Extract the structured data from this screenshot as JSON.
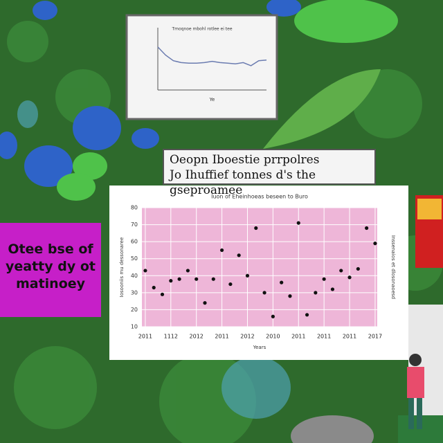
{
  "chart_data": [
    {
      "type": "scatter",
      "title": "Iuon of Eheinhoeas beseen to Buro",
      "xlabel": "Years",
      "ylabel": "Iosooniis mu dessonaree",
      "y2label": "Inssenaios et dlosonaoesd",
      "color": "#111111",
      "grid": true,
      "x": [
        0,
        1,
        2,
        3,
        4,
        5,
        6,
        7,
        8,
        9,
        10,
        11,
        12,
        13,
        14,
        15,
        16,
        17,
        18,
        19,
        20,
        21,
        22,
        23,
        24,
        25,
        26,
        27
      ],
      "values": [
        43,
        33,
        29,
        37,
        38,
        43,
        38,
        24,
        38,
        55,
        35,
        52,
        40,
        68,
        30,
        16,
        36,
        28,
        71,
        17,
        30,
        38,
        32,
        43,
        39,
        44,
        68,
        59
      ],
      "xlim": [
        -0.4,
        27.25
      ],
      "xticks": [
        {
          "value": 0,
          "label": "2011"
        },
        {
          "value": 3,
          "label": "1112"
        },
        {
          "value": 6,
          "label": "2012"
        },
        {
          "value": 9,
          "label": "2011"
        },
        {
          "value": 12,
          "label": "2012"
        },
        {
          "value": 15,
          "label": "2010"
        },
        {
          "value": 18,
          "label": "2011"
        },
        {
          "value": 21,
          "label": "2011"
        },
        {
          "value": 24,
          "label": "2011"
        },
        {
          "value": 27,
          "label": "2017"
        }
      ],
      "ylim": [
        10,
        80
      ],
      "yticks": [
        10,
        20,
        30,
        40,
        50,
        60,
        70,
        80
      ]
    },
    {
      "type": "line",
      "title": "Tmoqnoe mbohl rotlee ei tee",
      "xlabel": "Ye",
      "color": "#6a7bb0",
      "x": [
        0,
        1,
        2,
        3,
        4,
        5,
        6,
        7,
        8,
        9,
        10,
        11,
        12,
        13,
        14
      ],
      "values": [
        69,
        56,
        47,
        44,
        43,
        43,
        44,
        46,
        44,
        43,
        42,
        44,
        39,
        47,
        48
      ],
      "xlim": [
        0,
        14
      ],
      "ylim": [
        0,
        100
      ]
    }
  ],
  "banner": {
    "lines": [
      "Oeopn Iboestie prrpolres",
      "Jo Ihuffief tonnes d's the gseproamee"
    ]
  },
  "sign": {
    "lines": [
      "Otee bse of",
      "yeatty dy ot",
      "matinoey"
    ]
  }
}
